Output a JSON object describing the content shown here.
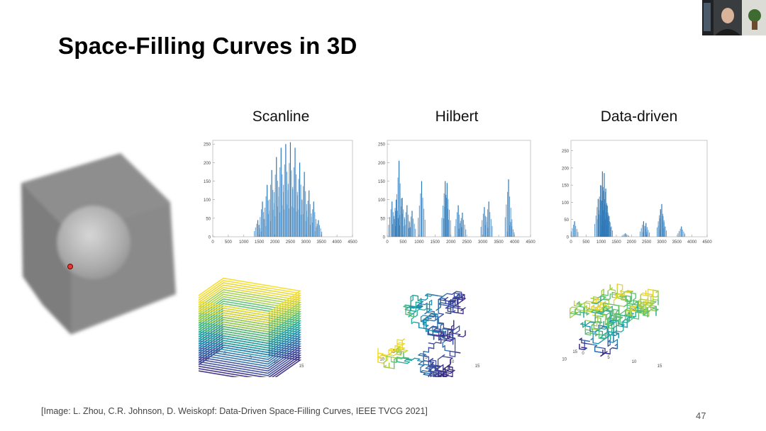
{
  "slide": {
    "title": "Space-Filling Curves in 3D",
    "citation": "[Image: L. Zhou, C.R. Johnson, D. Weiskopf: Data-Driven Space-Filling Curves, IEEE TVCG 2021]",
    "page_number": "47"
  },
  "columns": [
    {
      "label": "Scanline"
    },
    {
      "label": "Hilbert"
    },
    {
      "label": "Data-driven"
    }
  ],
  "chart_data": [
    {
      "type": "bar",
      "xticks": [
        "0",
        "500",
        "1000",
        "1500",
        "2000",
        "2500",
        "3000",
        "3500",
        "4000",
        "4500"
      ],
      "yticks": [
        "0",
        "50",
        "100",
        "150",
        "200",
        "250"
      ],
      "xlim": [
        0,
        4500
      ],
      "ylim": [
        0,
        260
      ],
      "x": [
        1450,
        1600,
        1750,
        1900,
        2050,
        2200,
        2350,
        2500,
        2650,
        2800,
        2950,
        3100,
        3250,
        3400
      ],
      "values": [
        45,
        95,
        140,
        180,
        215,
        240,
        250,
        255,
        240,
        200,
        175,
        125,
        95,
        45
      ]
    },
    {
      "type": "bar",
      "xticks": [
        "0",
        "500",
        "1000",
        "1500",
        "2000",
        "2500",
        "3000",
        "3500",
        "4000",
        "4500"
      ],
      "yticks": [
        "0",
        "50",
        "100",
        "150",
        "200",
        "250"
      ],
      "xlim": [
        0,
        4500
      ],
      "ylim": [
        0,
        260
      ],
      "x": [
        150,
        280,
        370,
        470,
        620,
        780,
        1080,
        1820,
        1880,
        2230,
        2360,
        3050,
        3190,
        3810,
        3880
      ],
      "values": [
        95,
        100,
        205,
        105,
        85,
        70,
        150,
        150,
        145,
        85,
        65,
        80,
        95,
        155,
        40
      ],
      "series_line_color": "#2e78b7"
    },
    {
      "type": "bar",
      "xticks": [
        "0",
        "500",
        "1000",
        "1500",
        "2000",
        "2500",
        "3000",
        "3500",
        "4000",
        "4500"
      ],
      "yticks": [
        "0",
        "50",
        "100",
        "150",
        "200",
        "250"
      ],
      "xlim": [
        0,
        4500
      ],
      "ylim": [
        0,
        280
      ],
      "x": [
        120,
        900,
        980,
        1040,
        1100,
        1150,
        1200,
        1260,
        1800,
        2400,
        2480,
        2960,
        3000,
        3040,
        3650
      ],
      "values": [
        45,
        110,
        150,
        190,
        185,
        140,
        90,
        60,
        10,
        45,
        40,
        80,
        95,
        60,
        30
      ]
    }
  ],
  "curves3d": [
    {
      "zticks": [
        "0",
        "5",
        "10",
        "15"
      ],
      "yticks": [
        "0",
        "5",
        "10",
        "15"
      ],
      "xticks": [
        "0",
        "5",
        "10",
        "15"
      ],
      "style": "scanline"
    },
    {
      "zticks": [
        "0",
        "5",
        "10",
        "15"
      ],
      "yticks": [
        "0",
        "5",
        "10",
        "15"
      ],
      "xticks": [
        "0",
        "5",
        "10",
        "15"
      ],
      "style": "hilbert"
    },
    {
      "zticks": [
        "0",
        "5",
        "10",
        "15"
      ],
      "yticks": [
        "0",
        "5",
        "10",
        "15"
      ],
      "xticks": [
        "0",
        "5",
        "10",
        "15"
      ],
      "style": "data"
    }
  ],
  "colors": {
    "bar": "#2e78b7",
    "viridis": [
      "#3b2f85",
      "#3d4c9d",
      "#2d6faa",
      "#1f8fb0",
      "#25aa9a",
      "#5cbf72",
      "#a4cf47",
      "#e6d432",
      "#f4dd2b"
    ]
  }
}
